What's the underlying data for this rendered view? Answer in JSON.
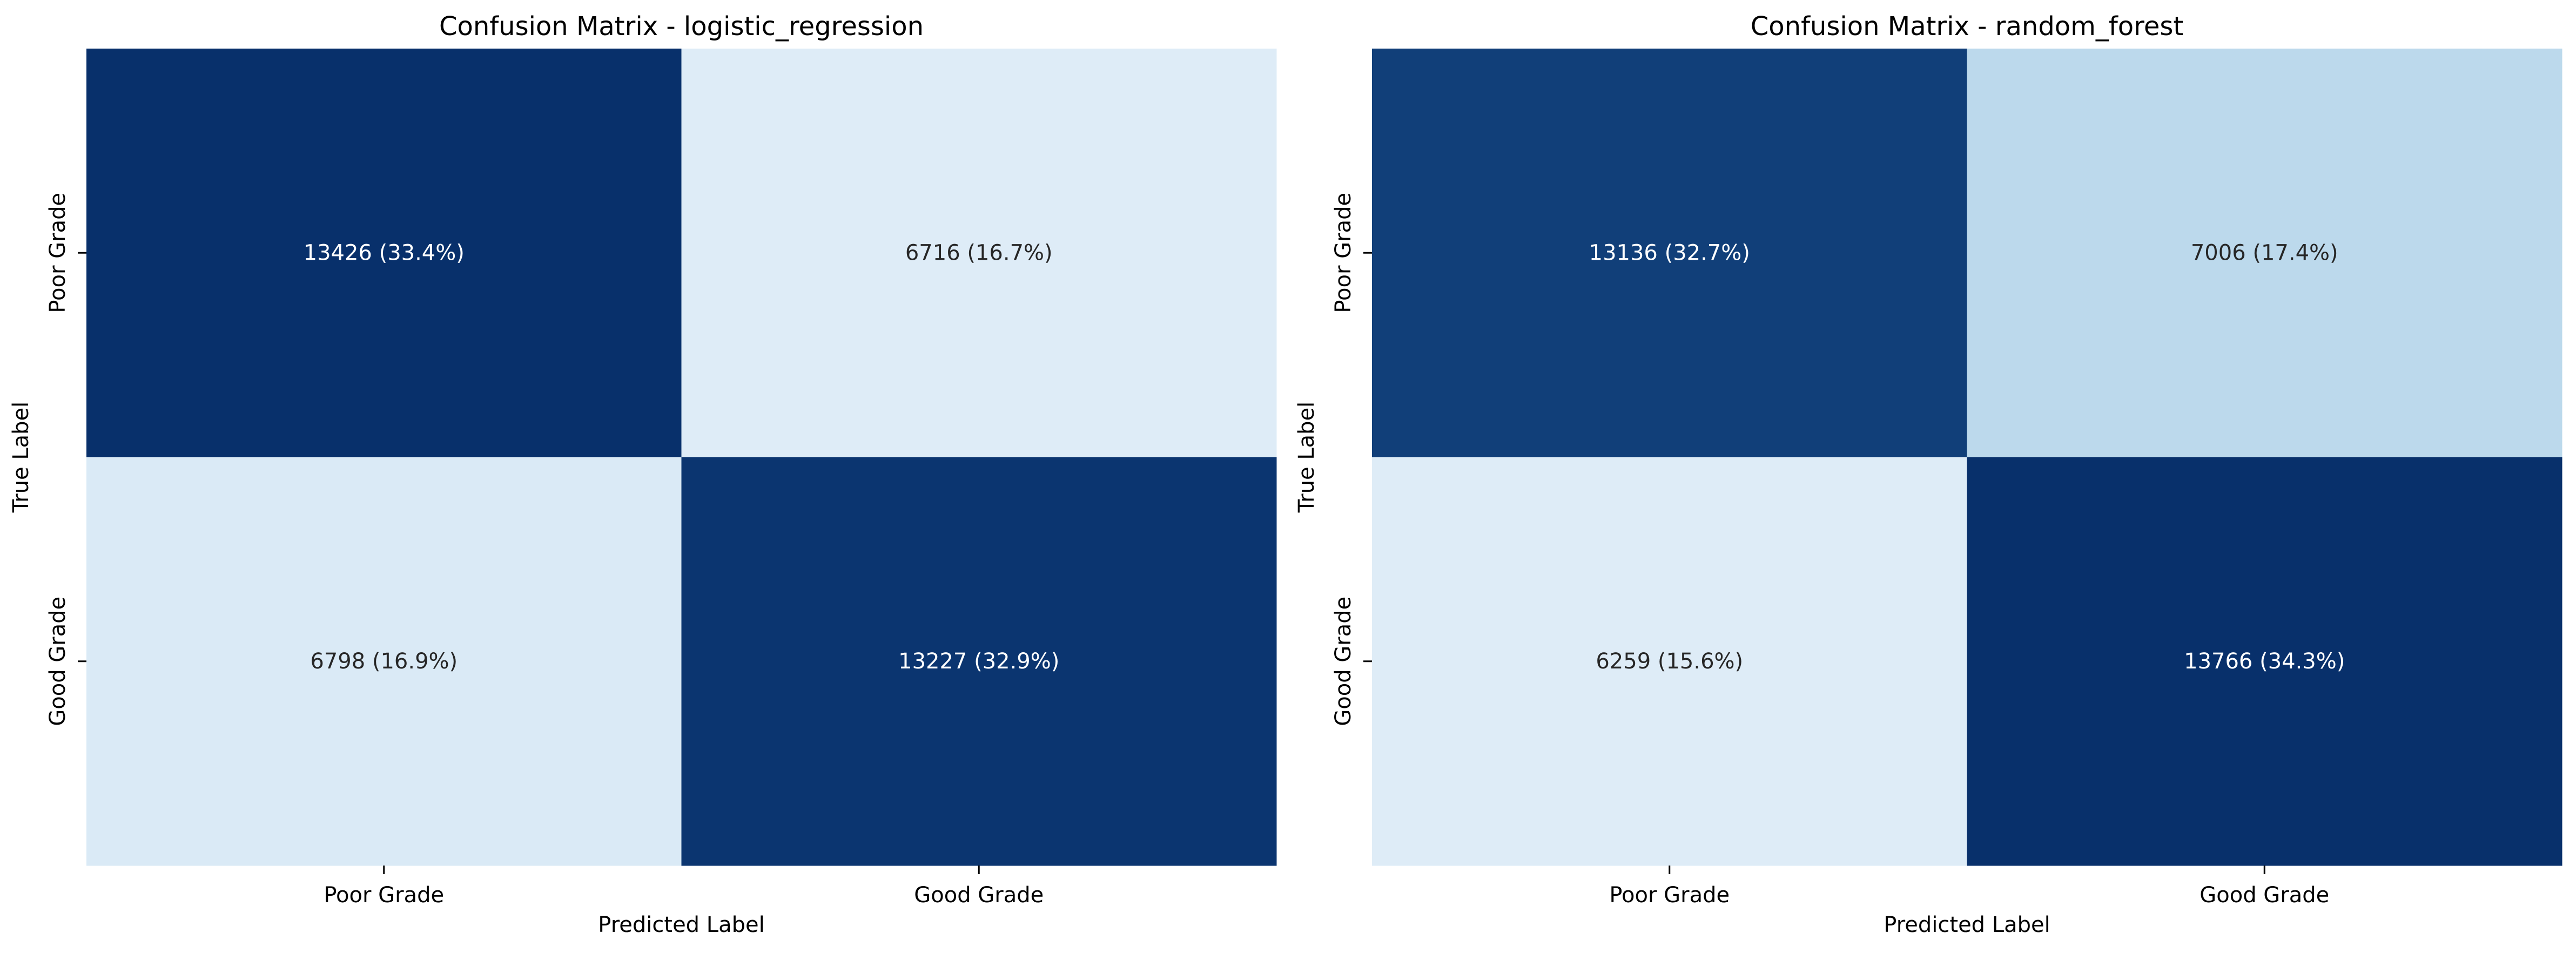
{
  "chart_data": [
    {
      "type": "heatmap",
      "title": "Confusion Matrix - logistic_regression",
      "xlabel": "Predicted Label",
      "ylabel": "True Label",
      "x_categories": [
        "Poor Grade",
        "Good Grade"
      ],
      "y_categories": [
        "Poor Grade",
        "Good Grade"
      ],
      "values": [
        [
          13426,
          6716
        ],
        [
          6798,
          13227
        ]
      ],
      "cell_labels": [
        [
          "13426 (33.4%)",
          "6716 (16.7%)"
        ],
        [
          "6798 (16.9%)",
          "13227 (32.9%)"
        ]
      ],
      "colormap": "Blues",
      "colorbar": false,
      "grid": false
    },
    {
      "type": "heatmap",
      "title": "Confusion Matrix - random_forest",
      "xlabel": "Predicted Label",
      "ylabel": "True Label",
      "x_categories": [
        "Poor Grade",
        "Good Grade"
      ],
      "y_categories": [
        "Poor Grade",
        "Good Grade"
      ],
      "values": [
        [
          13136,
          7006
        ],
        [
          6259,
          13766
        ]
      ],
      "cell_labels": [
        [
          "13136 (32.7%)",
          "7006 (17.4%)"
        ],
        [
          "6259 (15.6%)",
          "13766 (34.3%)"
        ]
      ],
      "colormap": "Blues",
      "colorbar": false,
      "grid": false
    }
  ],
  "colors": {
    "blues_low": "#f7fbff",
    "blues_mid": "#4292c6",
    "blues_high": "#08306b",
    "text_dark": "#262626",
    "text_light": "#ffffff",
    "tick": "#000000"
  }
}
